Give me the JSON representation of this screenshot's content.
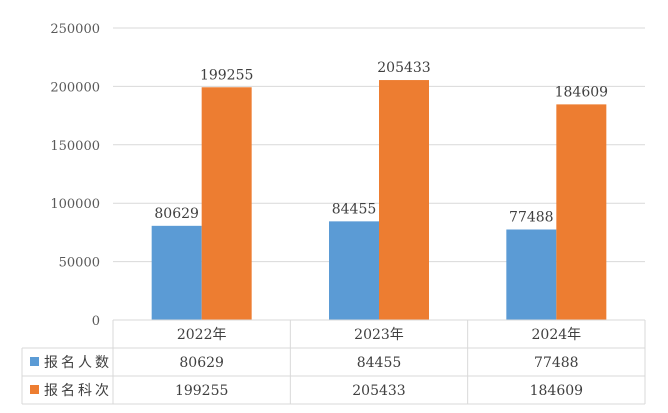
{
  "chart_data": {
    "type": "bar",
    "categories": [
      "2022年",
      "2023年",
      "2024年"
    ],
    "series": [
      {
        "name": "报名人数",
        "values": [
          80629,
          84455,
          77488
        ],
        "color": "#5b9bd5"
      },
      {
        "name": "报名科次",
        "values": [
          199255,
          205433,
          184609
        ],
        "color": "#ed7d31"
      }
    ],
    "y_ticks": [
      "0",
      "50000",
      "100000",
      "150000",
      "200000",
      "250000"
    ],
    "ylim": [
      0,
      250000
    ],
    "grid": true,
    "legend": "data-table",
    "data_labels": true,
    "data_table": true,
    "title": "",
    "xlabel": "",
    "ylabel": ""
  }
}
